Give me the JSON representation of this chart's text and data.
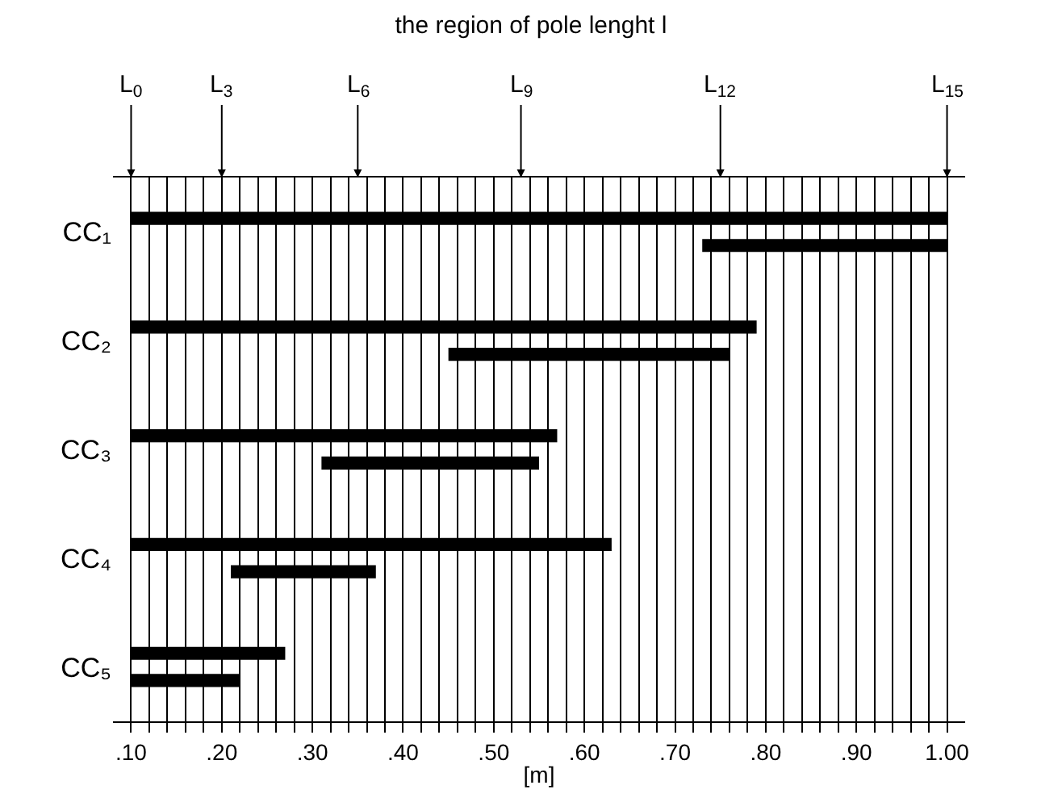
{
  "chart_data": {
    "type": "bar",
    "orientation": "horizontal",
    "title": "the region of pole lenght l",
    "xlabel": "[m]",
    "categories": [
      "CC₁",
      "CC₂",
      "CC₃",
      "CC₄",
      "CC₅"
    ],
    "series": [
      {
        "color": "#000000",
        "base": [
          0.1,
          0.1,
          0.1,
          0.1,
          0.1
        ],
        "values": [
          0.9,
          0.69,
          0.47,
          0.53,
          0.17
        ]
      },
      {
        "color": "#000000",
        "base": [
          0.73,
          0.45,
          0.31,
          0.21,
          0.1
        ],
        "values": [
          0.27,
          0.31,
          0.24,
          0.16,
          0.12
        ]
      }
    ],
    "xlim": [
      0.08,
      1.02
    ],
    "xticks": [
      {
        "value": 0.1,
        "label": ".10"
      },
      {
        "value": 0.12,
        "label": null
      },
      {
        "value": 0.14,
        "label": null
      },
      {
        "value": 0.16,
        "label": null
      },
      {
        "value": 0.18,
        "label": null
      },
      {
        "value": 0.2,
        "label": ".20"
      },
      {
        "value": 0.22,
        "label": null
      },
      {
        "value": 0.24,
        "label": null
      },
      {
        "value": 0.26,
        "label": null
      },
      {
        "value": 0.28,
        "label": null
      },
      {
        "value": 0.3,
        "label": ".30"
      },
      {
        "value": 0.32,
        "label": null
      },
      {
        "value": 0.34,
        "label": null
      },
      {
        "value": 0.36,
        "label": null
      },
      {
        "value": 0.38,
        "label": null
      },
      {
        "value": 0.4,
        "label": ".40"
      },
      {
        "value": 0.42,
        "label": null
      },
      {
        "value": 0.44,
        "label": null
      },
      {
        "value": 0.46,
        "label": null
      },
      {
        "value": 0.48,
        "label": null
      },
      {
        "value": 0.5,
        "label": ".50"
      },
      {
        "value": 0.52,
        "label": null
      },
      {
        "value": 0.54,
        "label": null
      },
      {
        "value": 0.56,
        "label": null
      },
      {
        "value": 0.58,
        "label": null
      },
      {
        "value": 0.6,
        "label": ".60"
      },
      {
        "value": 0.62,
        "label": null
      },
      {
        "value": 0.64,
        "label": null
      },
      {
        "value": 0.66,
        "label": null
      },
      {
        "value": 0.68,
        "label": null
      },
      {
        "value": 0.7,
        "label": ".70"
      },
      {
        "value": 0.72,
        "label": null
      },
      {
        "value": 0.74,
        "label": null
      },
      {
        "value": 0.76,
        "label": null
      },
      {
        "value": 0.78,
        "label": null
      },
      {
        "value": 0.8,
        "label": ".80"
      },
      {
        "value": 0.82,
        "label": null
      },
      {
        "value": 0.84,
        "label": null
      },
      {
        "value": 0.86,
        "label": null
      },
      {
        "value": 0.88,
        "label": null
      },
      {
        "value": 0.9,
        "label": ".90"
      },
      {
        "value": 0.92,
        "label": null
      },
      {
        "value": 0.94,
        "label": null
      },
      {
        "value": 0.96,
        "label": null
      },
      {
        "value": 0.98,
        "label": null
      },
      {
        "value": 1.0,
        "label": "1.00"
      }
    ],
    "grid": "x",
    "ref_lines": [
      {
        "axis": "x",
        "value": 0.1,
        "label": "L$_{0}$"
      },
      {
        "axis": "x",
        "value": 0.2,
        "label": "L$_{3}$"
      },
      {
        "axis": "x",
        "value": 0.35,
        "label": "L$_{6}$"
      },
      {
        "axis": "x",
        "value": 0.53,
        "label": "L$_{9}$"
      },
      {
        "axis": "x",
        "value": 0.75,
        "label": "L$_{12}$"
      },
      {
        "axis": "x",
        "value": 1.0,
        "label": "L$_{15}$"
      }
    ]
  }
}
